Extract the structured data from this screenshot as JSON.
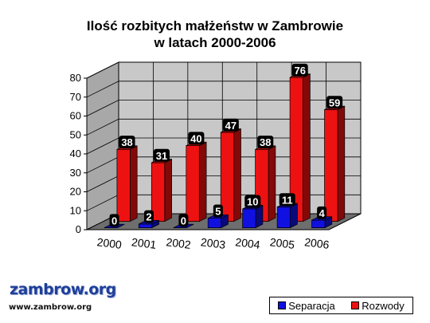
{
  "chart_data": {
    "type": "bar",
    "title_lines": [
      "Ilość rozbitych małżeństw w Zambrowie",
      "w latach 2000-2006"
    ],
    "categories": [
      "2000",
      "2001",
      "2002",
      "2003",
      "2004",
      "2005",
      "2006"
    ],
    "series": [
      {
        "name": "Separacja",
        "color": "#1010e0",
        "values": [
          0,
          2,
          0,
          5,
          10,
          11,
          4
        ]
      },
      {
        "name": "Rozwody",
        "color": "#ee1111",
        "values": [
          38,
          31,
          40,
          47,
          38,
          76,
          59
        ]
      }
    ],
    "ylim": [
      0,
      80
    ],
    "yticks": [
      "0",
      "10",
      "20",
      "30",
      "40",
      "50",
      "60",
      "70",
      "80"
    ],
    "grid": true,
    "legend_position": "bottom-right",
    "style": "3d"
  },
  "logo": {
    "name": "zambrow.org",
    "url": "www.zambrow.org"
  }
}
